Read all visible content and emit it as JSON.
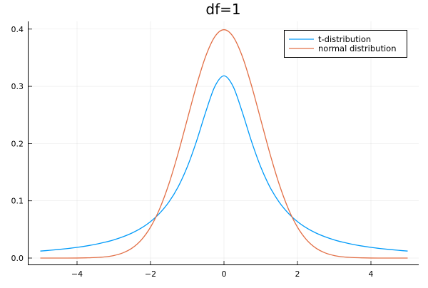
{
  "chart_data": {
    "type": "line",
    "title": "df=1",
    "xlabel": "",
    "ylabel": "",
    "xlim": [
      -5,
      5
    ],
    "ylim": [
      0,
      0.4
    ],
    "grid": true,
    "legend_position": "top-right",
    "x_ticks": [
      -4,
      -2,
      0,
      2,
      4
    ],
    "x_tick_labels": [
      "−4",
      "−2",
      "0",
      "2",
      "4"
    ],
    "y_ticks": [
      0,
      0.1,
      0.2,
      0.3,
      0.4
    ],
    "y_tick_labels": [
      "0.0",
      "0.1",
      "0.2",
      "0.3",
      "0.4"
    ],
    "x": [
      -5,
      -4.75,
      -4.5,
      -4.25,
      -4,
      -3.75,
      -3.5,
      -3.25,
      -3,
      -2.75,
      -2.5,
      -2.25,
      -2,
      -1.75,
      -1.5,
      -1.25,
      -1,
      -0.75,
      -0.5,
      -0.25,
      0,
      0.25,
      0.5,
      0.75,
      1,
      1.25,
      1.5,
      1.75,
      2,
      2.25,
      2.5,
      2.75,
      3,
      3.25,
      3.5,
      3.75,
      4,
      4.25,
      4.5,
      4.75,
      5
    ],
    "series": [
      {
        "name": "t-distribution",
        "color": "#009af9",
        "values": [
          0.0122,
          0.0135,
          0.015,
          0.0167,
          0.0187,
          0.0211,
          0.024,
          0.0275,
          0.0318,
          0.0372,
          0.0439,
          0.0525,
          0.0637,
          0.0784,
          0.0979,
          0.1242,
          0.1592,
          0.2037,
          0.2546,
          0.2996,
          0.3183,
          0.2996,
          0.2546,
          0.2037,
          0.1592,
          0.1242,
          0.0979,
          0.0784,
          0.0637,
          0.0525,
          0.0439,
          0.0372,
          0.0318,
          0.0275,
          0.024,
          0.0211,
          0.0187,
          0.0167,
          0.015,
          0.0135,
          0.0122
        ]
      },
      {
        "name": "normal distribution",
        "color": "#e26f46",
        "values": [
          0.0,
          0.0,
          0.0,
          0.0,
          0.0001,
          0.0004,
          0.0009,
          0.002,
          0.0044,
          0.0091,
          0.0175,
          0.0317,
          0.054,
          0.0863,
          0.1295,
          0.1826,
          0.242,
          0.3011,
          0.3521,
          0.3867,
          0.3989,
          0.3867,
          0.3521,
          0.3011,
          0.242,
          0.1826,
          0.1295,
          0.0863,
          0.054,
          0.0317,
          0.0175,
          0.0091,
          0.0044,
          0.002,
          0.0009,
          0.0004,
          0.0001,
          0.0,
          0.0,
          0.0,
          0.0
        ]
      }
    ]
  }
}
